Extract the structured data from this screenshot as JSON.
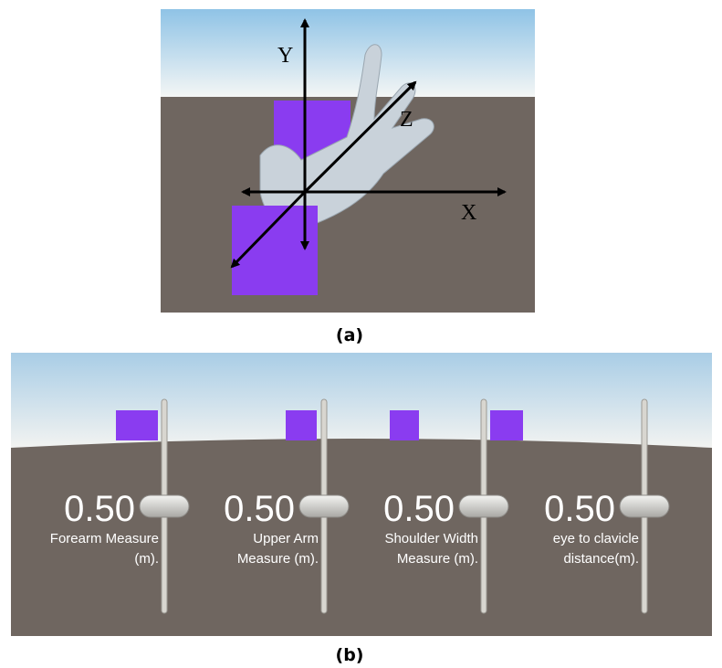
{
  "panel_a": {
    "axes": {
      "y": "Y",
      "z": "Z",
      "x": "X"
    },
    "caption": "(a)"
  },
  "panel_b": {
    "sliders": [
      {
        "value": "0.50",
        "label": [
          "Forearm Measure",
          "(m)."
        ]
      },
      {
        "value": "0.50",
        "label": [
          "Upper Arm",
          "Measure (m)."
        ]
      },
      {
        "value": "0.50",
        "label": [
          "Shoulder Width",
          "Measure (m)."
        ]
      },
      {
        "value": "0.50",
        "label": [
          "eye to clavicle",
          "distance(m)."
        ]
      }
    ],
    "caption": "(b)"
  }
}
